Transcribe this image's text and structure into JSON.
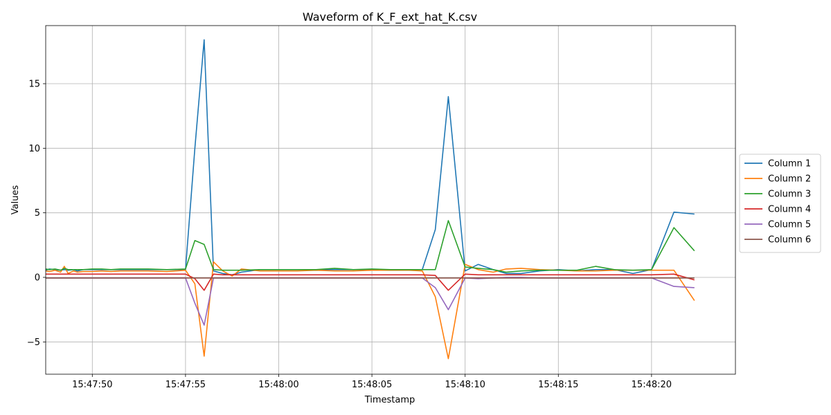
{
  "chart_data": {
    "type": "line",
    "title": "Waveform of K_F_ext_hat_K.csv",
    "xlabel": "Timestamp",
    "ylabel": "Values",
    "grid": true,
    "legend_position": "right",
    "xlim": [
      "15:47:47.5",
      "15:48:24.5"
    ],
    "ylim": [
      -7.5,
      19.5
    ],
    "x_ticks": [
      "15:47:50",
      "15:47:55",
      "15:48:00",
      "15:48:05",
      "15:48:10",
      "15:48:15",
      "15:48:20"
    ],
    "y_ticks": [
      -5,
      0,
      5,
      10,
      15
    ],
    "y_tick_labels": [
      "−5",
      "0",
      "5",
      "10",
      "15"
    ],
    "x": [
      "15:47:47.5",
      "15:47:47.7",
      "15:47:48.0",
      "15:47:48.3",
      "15:47:48.5",
      "15:47:48.7",
      "15:47:49.0",
      "15:47:49.2",
      "15:47:49.5",
      "15:47:50.0",
      "15:47:50.5",
      "15:47:51.0",
      "15:47:51.5",
      "15:47:52.0",
      "15:47:52.5",
      "15:47:53.0",
      "15:47:54.0",
      "15:47:55.0",
      "15:47:55.5",
      "15:47:56.0",
      "15:47:56.5",
      "15:47:57.0",
      "15:47:57.5",
      "15:47:58.0",
      "15:47:59.0",
      "15:48:00.0",
      "15:48:01.0",
      "15:48:02.0",
      "15:48:03.0",
      "15:48:04.0",
      "15:48:05.0",
      "15:48:06.0",
      "15:48:07.0",
      "15:48:07.7",
      "15:48:08.4",
      "15:48:09.1",
      "15:48:10.0",
      "15:48:10.7",
      "15:48:11.5",
      "15:48:12.2",
      "15:48:13.0",
      "15:48:14.0",
      "15:48:15.0",
      "15:48:16.0",
      "15:48:17.0",
      "15:48:18.0",
      "15:48:19.0",
      "15:48:20.0",
      "15:48:21.2",
      "15:48:22.3"
    ],
    "series": [
      {
        "name": "Column 1",
        "color": "#1f77b4",
        "values": [
          0.55,
          0.65,
          0.6,
          0.55,
          0.6,
          0.55,
          0.6,
          0.5,
          0.6,
          0.6,
          0.6,
          0.6,
          0.6,
          0.6,
          0.6,
          0.6,
          0.6,
          0.6,
          10.0,
          18.4,
          0.5,
          0.3,
          0.2,
          0.4,
          0.6,
          0.6,
          0.6,
          0.6,
          0.6,
          0.6,
          0.6,
          0.6,
          0.6,
          0.6,
          3.7,
          14.0,
          0.5,
          1.0,
          0.6,
          0.3,
          0.3,
          0.5,
          0.6,
          0.5,
          0.6,
          0.6,
          0.3,
          0.6,
          5.05,
          4.9
        ]
      },
      {
        "name": "Column 2",
        "color": "#ff7f0e",
        "values": [
          0.5,
          0.45,
          0.55,
          0.4,
          0.85,
          0.3,
          0.5,
          0.4,
          0.45,
          0.45,
          0.5,
          0.45,
          0.5,
          0.5,
          0.5,
          0.5,
          0.45,
          0.55,
          -0.5,
          -6.1,
          1.2,
          0.5,
          0.1,
          0.65,
          0.5,
          0.5,
          0.5,
          0.55,
          0.5,
          0.5,
          0.55,
          0.55,
          0.55,
          0.5,
          -1.5,
          -6.3,
          1.0,
          0.6,
          0.4,
          0.65,
          0.7,
          0.6,
          0.55,
          0.5,
          0.5,
          0.55,
          0.55,
          0.55,
          0.55,
          -1.8
        ]
      },
      {
        "name": "Column 3",
        "color": "#2ca02c",
        "values": [
          0.65,
          0.6,
          0.65,
          0.55,
          0.7,
          0.6,
          0.6,
          0.6,
          0.6,
          0.65,
          0.65,
          0.6,
          0.65,
          0.65,
          0.65,
          0.65,
          0.6,
          0.65,
          2.85,
          2.55,
          0.6,
          0.55,
          0.55,
          0.55,
          0.6,
          0.6,
          0.6,
          0.6,
          0.7,
          0.6,
          0.65,
          0.6,
          0.6,
          0.6,
          0.6,
          4.4,
          0.8,
          0.7,
          0.6,
          0.4,
          0.5,
          0.55,
          0.55,
          0.55,
          0.85,
          0.6,
          0.55,
          0.6,
          3.85,
          2.05
        ]
      },
      {
        "name": "Column 4",
        "color": "#d62728",
        "values": [
          0.25,
          0.25,
          0.25,
          0.25,
          0.25,
          0.25,
          0.25,
          0.25,
          0.25,
          0.25,
          0.25,
          0.25,
          0.25,
          0.25,
          0.25,
          0.25,
          0.25,
          0.25,
          -0.1,
          -1.0,
          0.25,
          0.2,
          0.2,
          0.2,
          0.2,
          0.2,
          0.2,
          0.2,
          0.2,
          0.2,
          0.2,
          0.2,
          0.2,
          0.2,
          0.15,
          -1.0,
          0.25,
          0.2,
          0.2,
          0.2,
          0.2,
          0.2,
          0.2,
          0.2,
          0.2,
          0.2,
          0.2,
          0.2,
          0.25,
          -0.2
        ]
      },
      {
        "name": "Column 5",
        "color": "#9467bd",
        "values": [
          -0.05,
          -0.05,
          -0.05,
          -0.05,
          -0.05,
          -0.05,
          -0.05,
          -0.05,
          -0.05,
          -0.05,
          -0.05,
          -0.05,
          -0.05,
          -0.05,
          -0.05,
          -0.05,
          -0.05,
          -0.05,
          -2.0,
          -3.7,
          -0.05,
          -0.05,
          -0.05,
          -0.05,
          -0.05,
          -0.05,
          -0.05,
          -0.05,
          -0.05,
          -0.05,
          -0.05,
          -0.05,
          -0.05,
          -0.05,
          -0.8,
          -2.5,
          -0.05,
          -0.1,
          -0.05,
          0.0,
          0.0,
          -0.05,
          -0.05,
          -0.05,
          -0.05,
          -0.05,
          -0.05,
          -0.05,
          -0.7,
          -0.8
        ]
      },
      {
        "name": "Column 6",
        "color": "#8c564b",
        "values": [
          -0.05,
          -0.05,
          -0.05,
          -0.05,
          -0.05,
          -0.05,
          -0.05,
          -0.05,
          -0.05,
          -0.05,
          -0.05,
          -0.05,
          -0.05,
          -0.05,
          -0.05,
          -0.05,
          -0.05,
          -0.05,
          -0.05,
          -0.05,
          -0.05,
          -0.05,
          -0.05,
          -0.05,
          -0.05,
          -0.05,
          -0.05,
          -0.05,
          -0.05,
          -0.05,
          -0.05,
          -0.05,
          -0.05,
          -0.05,
          -0.05,
          -0.05,
          -0.05,
          -0.05,
          -0.05,
          -0.05,
          -0.05,
          -0.05,
          -0.05,
          -0.05,
          -0.05,
          -0.05,
          -0.05,
          -0.05,
          -0.05,
          -0.05
        ]
      }
    ]
  }
}
